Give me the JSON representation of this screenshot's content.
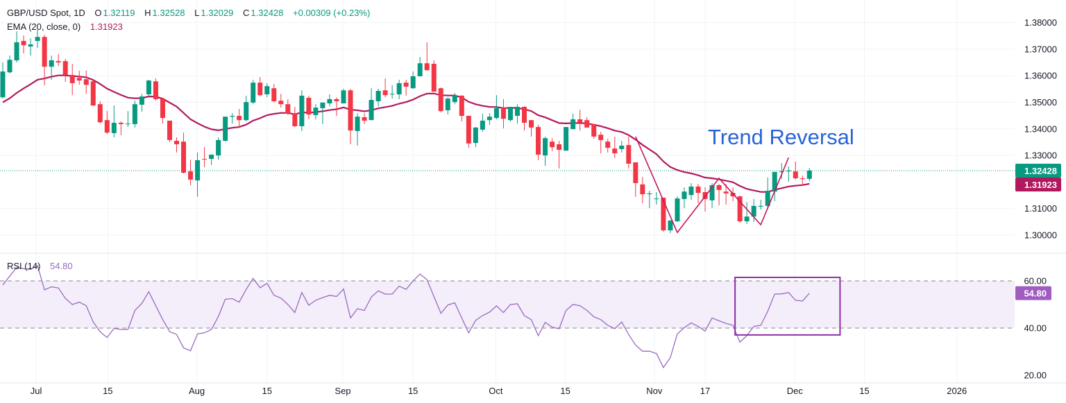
{
  "legend": {
    "symbol": "GBP/USD Spot, 1D",
    "o_label": "O",
    "o": "1.32119",
    "h_label": "H",
    "h": "1.32528",
    "l_label": "L",
    "l": "1.32029",
    "c_label": "C",
    "c": "1.32428",
    "change": "+0.00309 (+0.23%)",
    "ema_label": "EMA (20, close, 0)",
    "ema_value": "1.31923",
    "rsi_label": "RSI (14)",
    "rsi_value": "54.80"
  },
  "annotation_text": "Trend Reversal",
  "colors": {
    "up": "#089981",
    "down": "#f23645",
    "ema": "#b2185d",
    "rsi": "#9c6ac0",
    "box": "#8f2ea6",
    "annotation": "#2962d9",
    "zigzag": "#c2185b"
  },
  "chart_data": {
    "type": "candlestick",
    "title": "GBP/USD Spot, 1D",
    "price_axis": {
      "range": [
        1.2975,
        1.3845
      ],
      "ticks": [
        "1.38000",
        "1.37000",
        "1.36000",
        "1.35000",
        "1.34000",
        "1.33000",
        "1.31000",
        "1.30000"
      ],
      "last_price": "1.32428",
      "ema_last": "1.31923"
    },
    "time_axis": {
      "ticks": [
        {
          "label": "Jul",
          "bar": 4.8
        },
        {
          "label": "15",
          "bar": 15.1
        },
        {
          "label": "Aug",
          "bar": 27.9
        },
        {
          "label": "15",
          "bar": 38
        },
        {
          "label": "Sep",
          "bar": 48.9
        },
        {
          "label": "15",
          "bar": 59
        },
        {
          "label": "Oct",
          "bar": 70.9
        },
        {
          "label": "15",
          "bar": 80.9
        },
        {
          "label": "Nov",
          "bar": 93.7
        },
        {
          "label": "17",
          "bar": 101
        },
        {
          "label": "Dec",
          "bar": 113.9
        },
        {
          "label": "15",
          "bar": 123.9
        },
        {
          "label": "2026",
          "bar": 137.2
        }
      ]
    },
    "ohlc_fields": [
      "open",
      "high",
      "low",
      "close"
    ],
    "candles": [
      [
        1.3519,
        1.365,
        1.3514,
        1.3616
      ],
      [
        1.3613,
        1.3676,
        1.3608,
        1.366
      ],
      [
        1.3658,
        1.3767,
        1.365,
        1.3726
      ],
      [
        1.3731,
        1.3752,
        1.3684,
        1.3715
      ],
      [
        1.371,
        1.3741,
        1.3676,
        1.3718
      ],
      [
        1.3731,
        1.3773,
        1.3705,
        1.3746
      ],
      [
        1.3746,
        1.3754,
        1.3564,
        1.3634
      ],
      [
        1.3634,
        1.3676,
        1.3585,
        1.3658
      ],
      [
        1.3655,
        1.3681,
        1.3637,
        1.365
      ],
      [
        1.3655,
        1.3663,
        1.3577,
        1.3603
      ],
      [
        1.3603,
        1.3645,
        1.3527,
        1.3572
      ],
      [
        1.3592,
        1.3619,
        1.3566,
        1.3582
      ],
      [
        1.3587,
        1.3619,
        1.3532,
        1.3566
      ],
      [
        1.3579,
        1.3585,
        1.3485,
        1.3488
      ],
      [
        1.3493,
        1.3504,
        1.342,
        1.3425
      ],
      [
        1.3433,
        1.3467,
        1.3381,
        1.3386
      ],
      [
        1.3384,
        1.3488,
        1.3368,
        1.3423
      ],
      [
        1.3423,
        1.3428,
        1.3376,
        1.3418
      ],
      [
        1.3418,
        1.3467,
        1.3407,
        1.342
      ],
      [
        1.3418,
        1.3506,
        1.3405,
        1.3493
      ],
      [
        1.3491,
        1.3532,
        1.3465,
        1.3522
      ],
      [
        1.353,
        1.3585,
        1.3522,
        1.3582
      ],
      [
        1.3579,
        1.359,
        1.3506,
        1.3512
      ],
      [
        1.3514,
        1.3514,
        1.342,
        1.3441
      ],
      [
        1.3431,
        1.3431,
        1.335,
        1.3358
      ],
      [
        1.3355,
        1.3368,
        1.3311,
        1.3342
      ],
      [
        1.3352,
        1.3386,
        1.3232,
        1.3235
      ],
      [
        1.324,
        1.3284,
        1.3188,
        1.3209
      ],
      [
        1.3206,
        1.3311,
        1.3144,
        1.3282
      ],
      [
        1.3287,
        1.3331,
        1.3256,
        1.3285
      ],
      [
        1.3287,
        1.3303,
        1.3264,
        1.3303
      ],
      [
        1.33,
        1.3368,
        1.3284,
        1.3358
      ],
      [
        1.3355,
        1.3446,
        1.3352,
        1.3446
      ],
      [
        1.3446,
        1.3459,
        1.342,
        1.3449
      ],
      [
        1.3449,
        1.3475,
        1.3407,
        1.3433
      ],
      [
        1.3433,
        1.3525,
        1.3428,
        1.3501
      ],
      [
        1.3499,
        1.3585,
        1.3493,
        1.3574
      ],
      [
        1.3574,
        1.3595,
        1.3522,
        1.3527
      ],
      [
        1.353,
        1.3572,
        1.3519,
        1.3561
      ],
      [
        1.3553,
        1.3569,
        1.3499,
        1.3504
      ],
      [
        1.3506,
        1.3532,
        1.348,
        1.3493
      ],
      [
        1.3493,
        1.3512,
        1.3452,
        1.3459
      ],
      [
        1.3459,
        1.3483,
        1.3407,
        1.341
      ],
      [
        1.341,
        1.3545,
        1.3392,
        1.3525
      ],
      [
        1.3517,
        1.3525,
        1.3436,
        1.3454
      ],
      [
        1.3452,
        1.3493,
        1.3436,
        1.348
      ],
      [
        1.3478,
        1.3499,
        1.3418,
        1.3499
      ],
      [
        1.3496,
        1.353,
        1.3485,
        1.3512
      ],
      [
        1.3512,
        1.3519,
        1.3449,
        1.3504
      ],
      [
        1.3496,
        1.3551,
        1.3496,
        1.3545
      ],
      [
        1.3545,
        1.3551,
        1.3342,
        1.3394
      ],
      [
        1.3392,
        1.3459,
        1.3337,
        1.3446
      ],
      [
        1.3444,
        1.3459,
        1.3418,
        1.3431
      ],
      [
        1.3433,
        1.3553,
        1.3433,
        1.3509
      ],
      [
        1.3504,
        1.3551,
        1.3485,
        1.3543
      ],
      [
        1.3545,
        1.359,
        1.3519,
        1.3527
      ],
      [
        1.353,
        1.3564,
        1.3514,
        1.3532
      ],
      [
        1.353,
        1.3585,
        1.3512,
        1.3572
      ],
      [
        1.3574,
        1.3585,
        1.3525,
        1.3559
      ],
      [
        1.3553,
        1.3616,
        1.3551,
        1.3598
      ],
      [
        1.3598,
        1.3671,
        1.3598,
        1.3647
      ],
      [
        1.3647,
        1.3726,
        1.3619,
        1.3621
      ],
      [
        1.3645,
        1.3658,
        1.354,
        1.354
      ],
      [
        1.3553,
        1.3556,
        1.3462,
        1.3467
      ],
      [
        1.347,
        1.3519,
        1.3454,
        1.3514
      ],
      [
        1.3501,
        1.3535,
        1.3493,
        1.3525
      ],
      [
        1.3525,
        1.3527,
        1.3428,
        1.3449
      ],
      [
        1.3449,
        1.3449,
        1.3329,
        1.3345
      ],
      [
        1.3347,
        1.3407,
        1.3331,
        1.3405
      ],
      [
        1.3397,
        1.3457,
        1.3389,
        1.3431
      ],
      [
        1.3433,
        1.3459,
        1.3415,
        1.3446
      ],
      [
        1.3441,
        1.3527,
        1.3436,
        1.3478
      ],
      [
        1.348,
        1.3512,
        1.3402,
        1.3438
      ],
      [
        1.3433,
        1.3483,
        1.3428,
        1.3483
      ],
      [
        1.3449,
        1.3493,
        1.342,
        1.3483
      ],
      [
        1.3483,
        1.3485,
        1.3394,
        1.3423
      ],
      [
        1.3433,
        1.3433,
        1.3371,
        1.3405
      ],
      [
        1.3407,
        1.3415,
        1.3282,
        1.3303
      ],
      [
        1.33,
        1.3371,
        1.3261,
        1.3365
      ],
      [
        1.3352,
        1.3365,
        1.3316,
        1.3331
      ],
      [
        1.3342,
        1.3355,
        1.3251,
        1.3321
      ],
      [
        1.3318,
        1.3407,
        1.3318,
        1.3407
      ],
      [
        1.3399,
        1.3457,
        1.3399,
        1.3436
      ],
      [
        1.3436,
        1.3472,
        1.3394,
        1.3423
      ],
      [
        1.3433,
        1.3444,
        1.3405,
        1.3405
      ],
      [
        1.3418,
        1.3418,
        1.3363,
        1.3371
      ],
      [
        1.3378,
        1.3389,
        1.3308,
        1.3358
      ],
      [
        1.3352,
        1.3363,
        1.3311,
        1.3329
      ],
      [
        1.3326,
        1.3371,
        1.329,
        1.3308
      ],
      [
        1.3324,
        1.3355,
        1.3311,
        1.3337
      ],
      [
        1.3339,
        1.3371,
        1.3251,
        1.3269
      ],
      [
        1.3274,
        1.3274,
        1.3144,
        1.3196
      ],
      [
        1.3191,
        1.3219,
        1.312,
        1.3154
      ],
      [
        1.3154,
        1.3167,
        1.3102,
        1.3157
      ],
      [
        1.3136,
        1.3162,
        1.3115,
        1.3138
      ],
      [
        1.3141,
        1.3141,
        1.3013,
        1.3018
      ],
      [
        1.3018,
        1.3057,
        1.3008,
        1.3055
      ],
      [
        1.3052,
        1.3146,
        1.305,
        1.3138
      ],
      [
        1.3136,
        1.318,
        1.3102,
        1.3164
      ],
      [
        1.3151,
        1.3196,
        1.3133,
        1.3183
      ],
      [
        1.3183,
        1.3193,
        1.312,
        1.3159
      ],
      [
        1.3162,
        1.318,
        1.3089,
        1.3136
      ],
      [
        1.3131,
        1.3196,
        1.3102,
        1.3188
      ],
      [
        1.3188,
        1.3193,
        1.3112,
        1.317
      ],
      [
        1.3164,
        1.3193,
        1.3115,
        1.3157
      ],
      [
        1.3159,
        1.318,
        1.3128,
        1.3146
      ],
      [
        1.3146,
        1.3149,
        1.3047,
        1.3052
      ],
      [
        1.3052,
        1.3125,
        1.3042,
        1.307
      ],
      [
        1.307,
        1.3136,
        1.305,
        1.311
      ],
      [
        1.3107,
        1.3133,
        1.3097,
        1.311
      ],
      [
        1.311,
        1.3217,
        1.3099,
        1.3167
      ],
      [
        1.3164,
        1.3238,
        1.3128,
        1.3238
      ],
      [
        1.3238,
        1.3271,
        1.3211,
        1.324
      ],
      [
        1.324,
        1.3258,
        1.3201,
        1.3243
      ],
      [
        1.324,
        1.3277,
        1.3209,
        1.3214
      ],
      [
        1.3214,
        1.3224,
        1.3185,
        1.3211
      ],
      [
        1.32119,
        1.32528,
        1.32029,
        1.32428
      ]
    ],
    "ema": {
      "period": 20,
      "seed": 1.35
    },
    "rsi": {
      "period": 14,
      "range": [
        16,
        68
      ],
      "levels": [
        60,
        40
      ],
      "tick_labels": [
        "60.00",
        "40.00",
        "20.00"
      ],
      "last": "54.80",
      "values": [
        58.3,
        62,
        65.7,
        65.2,
        64.9,
        66.5,
        56.2,
        57.5,
        57,
        52.6,
        50,
        51,
        49.5,
        42.6,
        38.4,
        36,
        39.9,
        39.4,
        39.4,
        47.5,
        50.5,
        55.4,
        49.5,
        43.6,
        38.5,
        37.3,
        31.6,
        30.4,
        37.5,
        38,
        39.4,
        44.9,
        52.2,
        52.5,
        51,
        56.4,
        61.1,
        57.1,
        59,
        53.9,
        52.7,
        50,
        46.6,
        55.1,
        49.7,
        51.8,
        52.9,
        53.9,
        53.4,
        56.6,
        44.3,
        48.2,
        47.5,
        53.2,
        55.8,
        54.4,
        54.4,
        57.8,
        56.4,
        60,
        62.9,
        60.6,
        53.4,
        46.3,
        49.8,
        50.7,
        44.3,
        38,
        43.3,
        45.3,
        46.8,
        49.4,
        46.6,
        50,
        50.3,
        45.3,
        43.6,
        36.8,
        42.4,
        40.4,
        39.7,
        47.5,
        50,
        49.5,
        47.5,
        44.8,
        43.6,
        41.2,
        39.7,
        42.6,
        37.3,
        32.8,
        30.2,
        30.2,
        29.2,
        23.3,
        27.5,
        37.5,
        40.2,
        42.2,
        40.7,
        38.7,
        44.3,
        43.1,
        42,
        41.2,
        34,
        36.8,
        40.7,
        41.2,
        47.1,
        54.4,
        54.5,
        55.1,
        51.8,
        51.5,
        54.8
      ]
    },
    "annotations": {
      "zigzag": [
        [
          91,
          1.3371
        ],
        [
          97,
          1.301
        ],
        [
          103,
          1.3214
        ],
        [
          109,
          1.3039
        ],
        [
          113,
          1.3292
        ]
      ],
      "rsi_box": {
        "bar_from": 105.3,
        "bar_to": 120.4,
        "rsi_top": 61.5,
        "rsi_bottom": 37.1
      }
    }
  }
}
